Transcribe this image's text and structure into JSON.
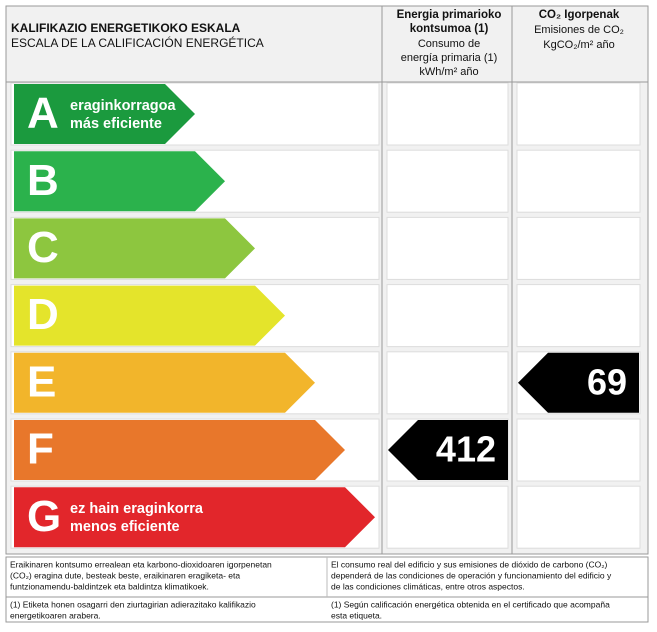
{
  "header": {
    "title": "KALIFIKAZIO ENERGETIKOKO ESKALA",
    "subtitle": "ESCALA DE LA CALIFICACIÓN ENERGÉTICA",
    "col1": {
      "title_lines": [
        "Energia primarioko",
        "kontsumoa (1)"
      ],
      "subtitle_lines": [
        "Consumo de",
        "energía primaria (1)",
        "kWh/m² año"
      ]
    },
    "col2": {
      "title_lines": [
        "CO₂ Igorpenak"
      ],
      "subtitle_lines": [
        "Emisiones de CO₂",
        "KgCO₂/m² año"
      ]
    }
  },
  "scale": [
    {
      "letter": "A",
      "label_lines": [
        "eraginkorragoa",
        "más eficiente"
      ],
      "color": "#1b9a3e"
    },
    {
      "letter": "B",
      "label_lines": [],
      "color": "#2bb24c"
    },
    {
      "letter": "C",
      "label_lines": [],
      "color": "#8dc63f"
    },
    {
      "letter": "D",
      "label_lines": [],
      "color": "#e4e42b"
    },
    {
      "letter": "E",
      "label_lines": [],
      "color": "#f2b52b"
    },
    {
      "letter": "F",
      "label_lines": [],
      "color": "#e8772b"
    },
    {
      "letter": "G",
      "label_lines": [
        "ez hain eraginkorra",
        "menos eficiente"
      ],
      "color": "#e2262b"
    }
  ],
  "ratings": [
    {
      "value": 412,
      "grade": "F"
    },
    {
      "value": 69,
      "grade": "E"
    }
  ],
  "footer": {
    "left_lines": [
      "Eraikinaren kontsumo errealean eta karbono-dioxidoaren igorpenetan",
      "(CO₂) eragina dute, besteak beste, eraikinaren eragiketa- eta",
      "funtzionamendu-baldintzek eta baldintza klimatikoek."
    ],
    "right_lines": [
      "El consumo real del edificio y sus emisiones de dióxido de carbono (CO₂)",
      "dependerá de las condiciones de operación y funcionamiento del edificio y",
      "de las condiciones climáticas, entre otros aspectos."
    ],
    "note_left_lines": [
      "(1) Etiketa honen osagarri den ziurtagirian adierazitako kalifikazio",
      "energetikoaren arabera."
    ],
    "note_right_lines": [
      "(1) Según calificación energética obtenida en el certificado que acompaña",
      "esta etiqueta."
    ]
  }
}
